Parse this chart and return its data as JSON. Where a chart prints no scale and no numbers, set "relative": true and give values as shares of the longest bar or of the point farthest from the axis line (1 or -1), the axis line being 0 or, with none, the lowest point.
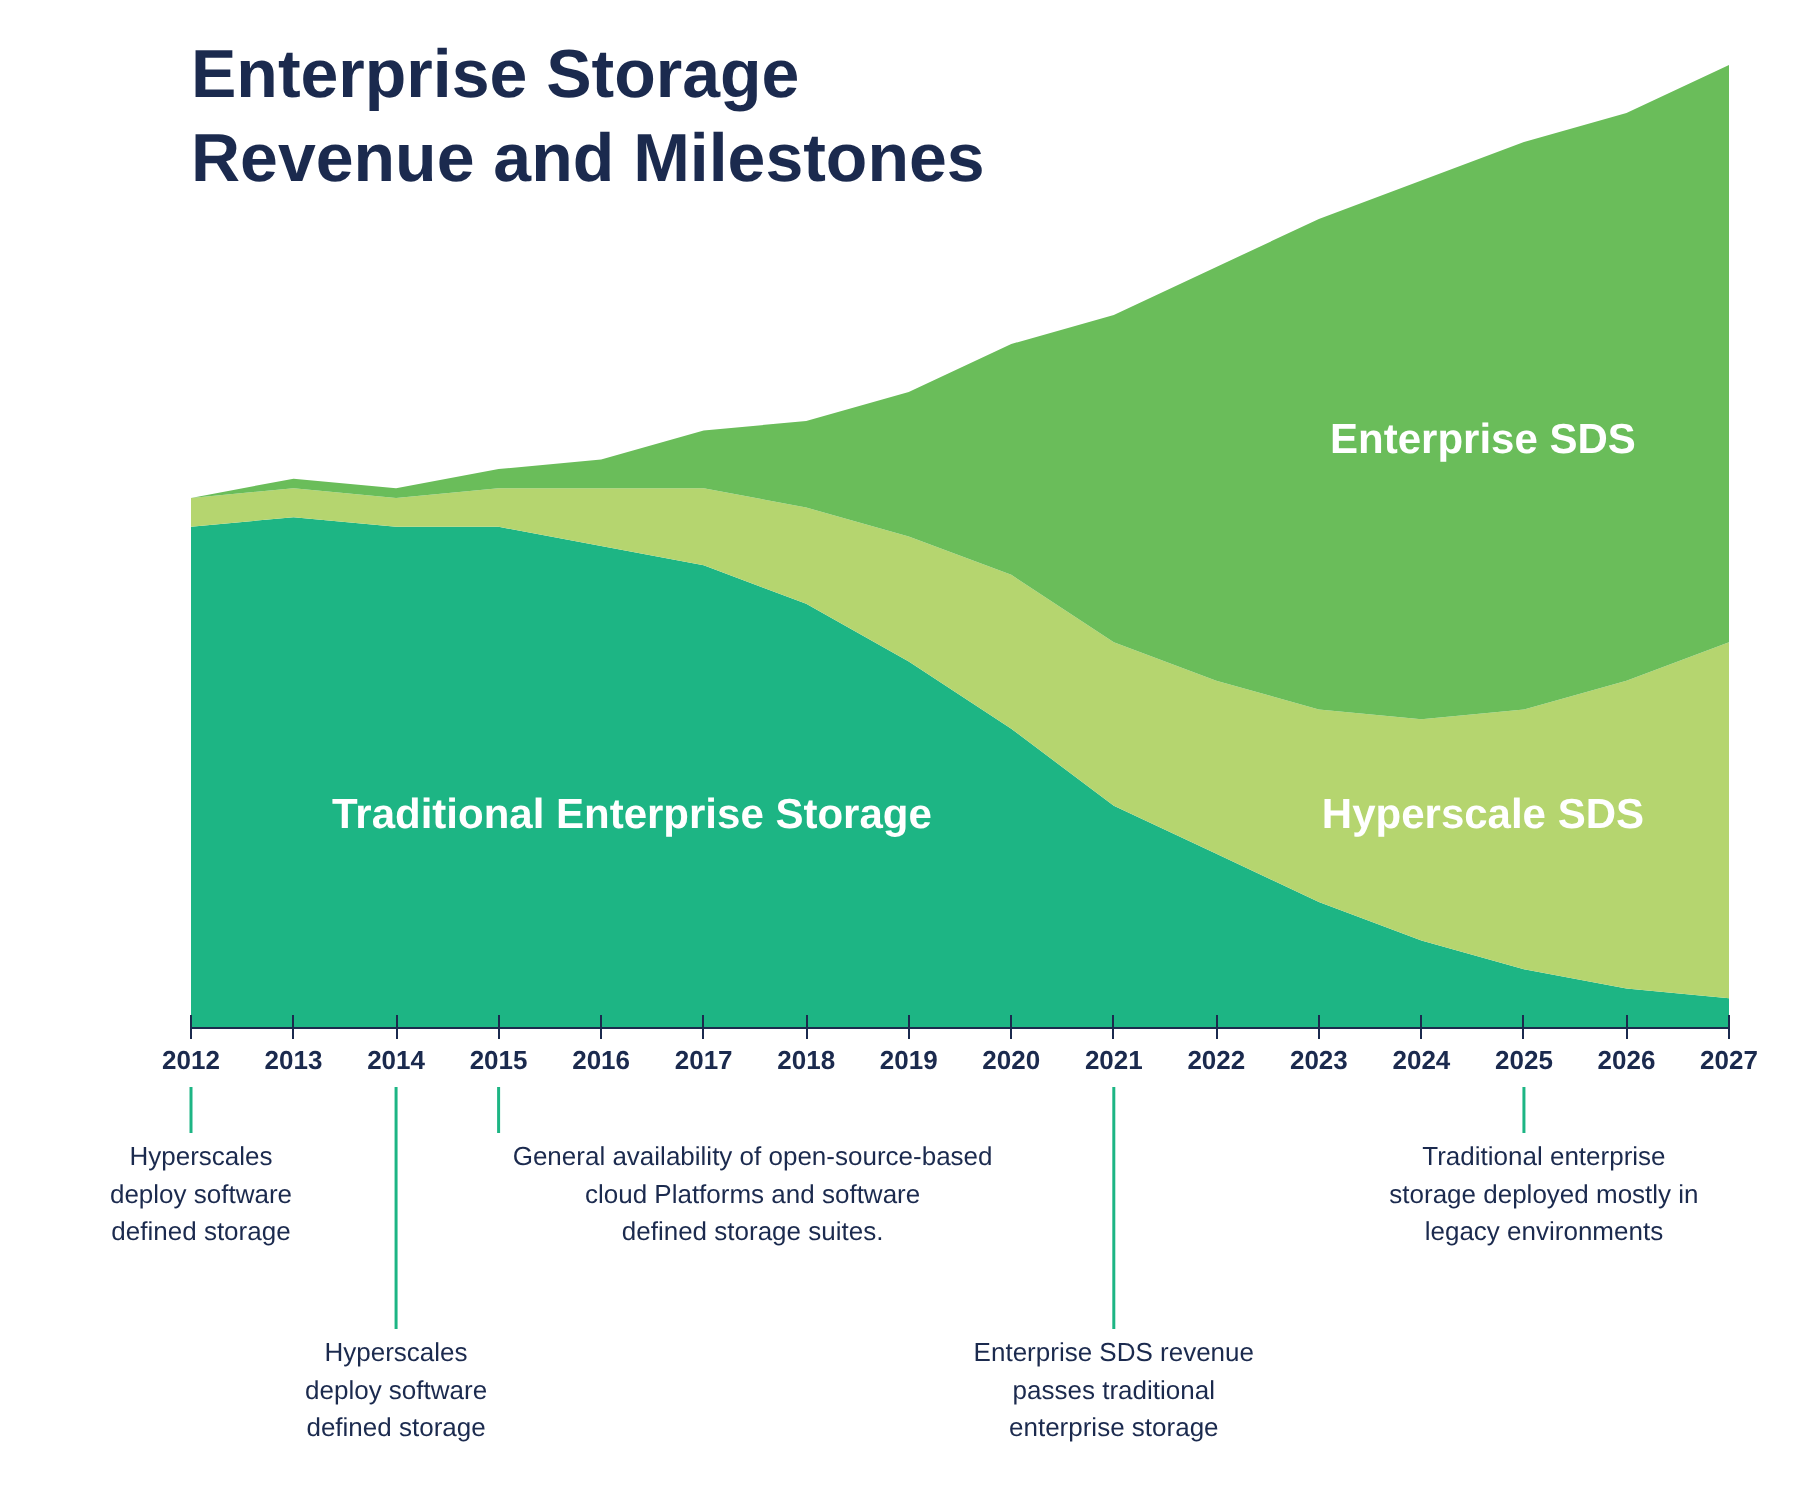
{
  "chart_data": {
    "type": "area",
    "stacked": true,
    "relative": true,
    "title": "Enterprise Storage\nRevenue and Milestones",
    "x": [
      2012,
      2013,
      2014,
      2015,
      2016,
      2017,
      2018,
      2019,
      2020,
      2021,
      2022,
      2023,
      2024,
      2025,
      2026,
      2027
    ],
    "xlim": [
      2012,
      2027
    ],
    "xticks": [
      2012,
      2013,
      2014,
      2015,
      2016,
      2017,
      2018,
      2019,
      2020,
      2021,
      2022,
      2023,
      2024,
      2025,
      2026,
      2027
    ],
    "tick_labels": "x",
    "grid": false,
    "series": [
      {
        "name": "Traditional Enterprise Storage",
        "color": "#1db584",
        "values": [
          0.52,
          0.53,
          0.52,
          0.52,
          0.5,
          0.48,
          0.44,
          0.38,
          0.31,
          0.23,
          0.18,
          0.13,
          0.09,
          0.06,
          0.04,
          0.03
        ]
      },
      {
        "name": "Hyperscale SDS",
        "color": "#b5d56f",
        "values": [
          0.03,
          0.03,
          0.03,
          0.04,
          0.06,
          0.08,
          0.1,
          0.13,
          0.16,
          0.17,
          0.18,
          0.2,
          0.23,
          0.27,
          0.32,
          0.37
        ]
      },
      {
        "name": "Enterprise SDS",
        "color": "#6abd5a",
        "values": [
          0.0,
          0.01,
          0.01,
          0.02,
          0.03,
          0.06,
          0.09,
          0.15,
          0.24,
          0.34,
          0.43,
          0.51,
          0.56,
          0.59,
          0.59,
          0.6
        ]
      }
    ],
    "annotations": [
      "Hyperscales\ndeploy software\ndefined storage",
      "Hyperscales\ndeploy software\ndefined storage",
      "General availability of open-source-based\ncloud Platforms and software\ndefined storage suites.",
      "Enterprise SDS revenue\npasses traditional\nenterprise storage",
      "Traditional enterprise\nstorage deployed mostly in\nlegacy environments"
    ]
  }
}
